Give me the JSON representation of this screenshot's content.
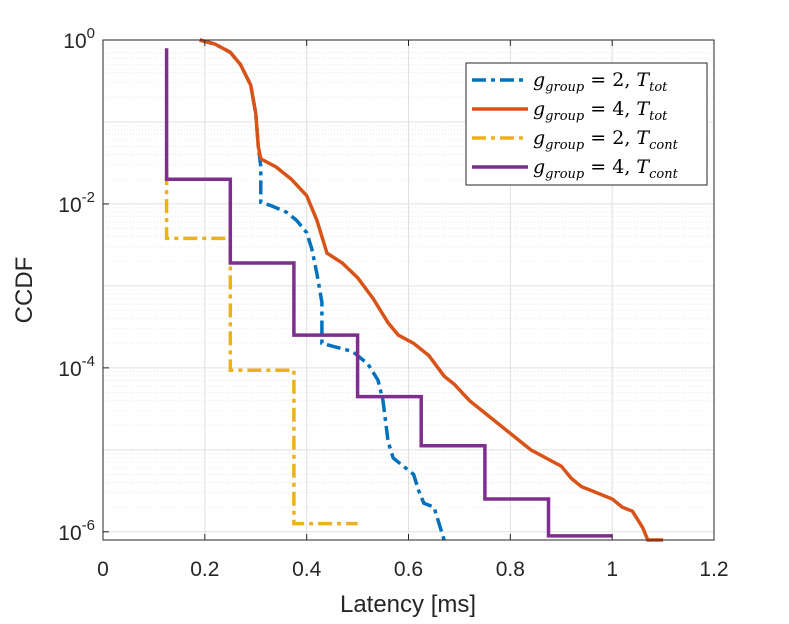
{
  "chart_data": {
    "type": "line",
    "title": "",
    "xlabel": "Latency [ms]",
    "ylabel": "CCDF",
    "xlim": [
      0,
      1.2
    ],
    "ylim_log10": [
      -6.1,
      0
    ],
    "x_scale": "linear",
    "y_scale": "log",
    "grid": true,
    "legend_position": "top-right",
    "x_ticks": [
      "0",
      "0.2",
      "0.4",
      "0.6",
      "0.8",
      "1",
      "1.2"
    ],
    "y_ticks": [
      {
        "base": "10",
        "exp": "0"
      },
      {
        "base": "10",
        "exp": "-2"
      },
      {
        "base": "10",
        "exp": "-4"
      },
      {
        "base": "10",
        "exp": "-6"
      }
    ],
    "series": [
      {
        "name": "g_group = 2, T_tot",
        "legend_main": "g",
        "legend_sub": "group",
        "legend_mid": " = 2, ",
        "legend_T": "T",
        "legend_Tsub": "tot",
        "color": "#0072BD",
        "dash": "14,5,4,5",
        "points": [
          [
            0.19,
            0
          ],
          [
            0.22,
            -0.05
          ],
          [
            0.25,
            -0.15
          ],
          [
            0.27,
            -0.3
          ],
          [
            0.29,
            -0.55
          ],
          [
            0.3,
            -0.9
          ],
          [
            0.305,
            -1.3
          ],
          [
            0.31,
            -1.55
          ],
          [
            0.31,
            -1.98
          ],
          [
            0.33,
            -2.02
          ],
          [
            0.36,
            -2.1
          ],
          [
            0.38,
            -2.2
          ],
          [
            0.4,
            -2.35
          ],
          [
            0.41,
            -2.55
          ],
          [
            0.42,
            -2.85
          ],
          [
            0.43,
            -3.2
          ],
          [
            0.43,
            -3.7
          ],
          [
            0.46,
            -3.75
          ],
          [
            0.49,
            -3.8
          ],
          [
            0.52,
            -3.95
          ],
          [
            0.54,
            -4.15
          ],
          [
            0.55,
            -4.4
          ],
          [
            0.56,
            -4.9
          ],
          [
            0.57,
            -5.1
          ],
          [
            0.59,
            -5.2
          ],
          [
            0.61,
            -5.3
          ],
          [
            0.62,
            -5.5
          ],
          [
            0.63,
            -5.65
          ],
          [
            0.65,
            -5.7
          ],
          [
            0.66,
            -5.9
          ],
          [
            0.67,
            -6.1
          ]
        ]
      },
      {
        "name": "g_group = 4, T_tot",
        "legend_main": "g",
        "legend_sub": "group",
        "legend_mid": " = 4, ",
        "legend_T": "T",
        "legend_Tsub": "tot",
        "color": "#D95319",
        "dash": "",
        "points": [
          [
            0.19,
            0
          ],
          [
            0.22,
            -0.05
          ],
          [
            0.25,
            -0.15
          ],
          [
            0.27,
            -0.3
          ],
          [
            0.29,
            -0.55
          ],
          [
            0.3,
            -0.9
          ],
          [
            0.305,
            -1.3
          ],
          [
            0.31,
            -1.45
          ],
          [
            0.34,
            -1.55
          ],
          [
            0.37,
            -1.7
          ],
          [
            0.4,
            -1.9
          ],
          [
            0.42,
            -2.2
          ],
          [
            0.44,
            -2.6
          ],
          [
            0.47,
            -2.72
          ],
          [
            0.5,
            -2.9
          ],
          [
            0.53,
            -3.15
          ],
          [
            0.56,
            -3.45
          ],
          [
            0.58,
            -3.6
          ],
          [
            0.61,
            -3.7
          ],
          [
            0.64,
            -3.85
          ],
          [
            0.67,
            -4.1
          ],
          [
            0.69,
            -4.2
          ],
          [
            0.72,
            -4.4
          ],
          [
            0.75,
            -4.55
          ],
          [
            0.78,
            -4.7
          ],
          [
            0.81,
            -4.85
          ],
          [
            0.84,
            -5.0
          ],
          [
            0.87,
            -5.1
          ],
          [
            0.9,
            -5.2
          ],
          [
            0.92,
            -5.35
          ],
          [
            0.94,
            -5.45
          ],
          [
            0.96,
            -5.5
          ],
          [
            1.0,
            -5.6
          ],
          [
            1.02,
            -5.7
          ],
          [
            1.04,
            -5.75
          ],
          [
            1.06,
            -5.95
          ],
          [
            1.07,
            -6.1
          ],
          [
            1.1,
            -6.1
          ]
        ]
      },
      {
        "name": "g_group = 2, T_cont",
        "legend_main": "g",
        "legend_sub": "group",
        "legend_mid": " = 2, ",
        "legend_T": "T",
        "legend_Tsub": "cont",
        "color": "#EDB120",
        "dash": "14,5,4,5",
        "points": [
          [
            0.125,
            -1.6
          ],
          [
            0.125,
            -2.42
          ],
          [
            0.25,
            -2.42
          ],
          [
            0.25,
            -4.03
          ],
          [
            0.375,
            -4.03
          ],
          [
            0.375,
            -5.9
          ],
          [
            0.5,
            -5.9
          ]
        ]
      },
      {
        "name": "g_group = 4, T_cont",
        "legend_main": "g",
        "legend_sub": "group",
        "legend_mid": " = 4, ",
        "legend_T": "T",
        "legend_Tsub": "cont",
        "color": "#7E2F8E",
        "dash": "",
        "points": [
          [
            0.125,
            -0.1
          ],
          [
            0.125,
            -1.7
          ],
          [
            0.25,
            -1.7
          ],
          [
            0.25,
            -2.72
          ],
          [
            0.375,
            -2.72
          ],
          [
            0.375,
            -3.6
          ],
          [
            0.5,
            -3.6
          ],
          [
            0.5,
            -4.35
          ],
          [
            0.625,
            -4.35
          ],
          [
            0.625,
            -4.95
          ],
          [
            0.75,
            -4.95
          ],
          [
            0.75,
            -5.6
          ],
          [
            0.875,
            -5.6
          ],
          [
            0.875,
            -6.05
          ],
          [
            1.0,
            -6.05
          ]
        ]
      }
    ]
  }
}
